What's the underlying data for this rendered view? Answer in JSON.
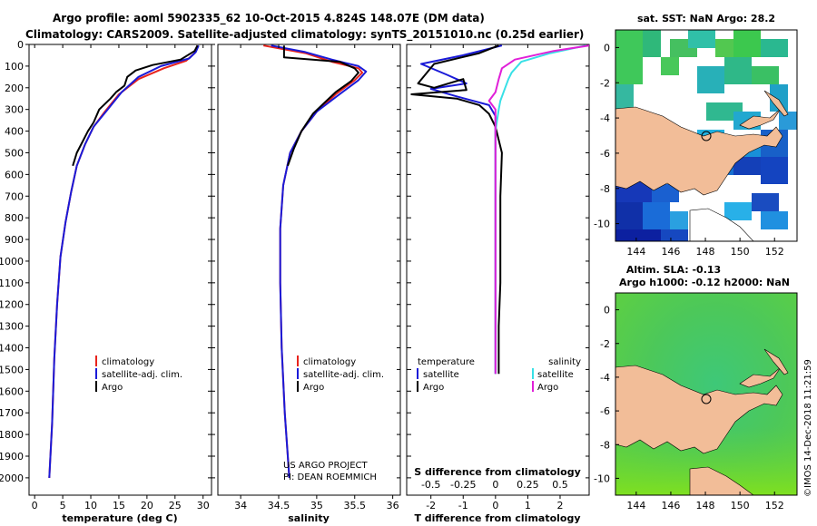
{
  "header": {
    "line1": "Argo profile: aoml 5902335_62 10-Oct-2015 4.824S 148.07E (DM data)",
    "line2": "Climatology: CARS2009. Satellite-adjusted climatology: synTS_20151010.nc (0.25d earlier)"
  },
  "colors": {
    "climatology": "#e8231c",
    "satellite": "#1a1ad8",
    "argo": "#000000",
    "sat_salinity": "#38e0e6",
    "argo_salinity": "#e020d8",
    "land": "#f2bd98"
  },
  "chart_data": [
    {
      "id": "temperature",
      "type": "line",
      "xlabel": "temperature (deg C)",
      "ylabel": "",
      "xlim": [
        -1,
        31.5
      ],
      "ylim": [
        2080,
        0
      ],
      "xticks": [
        "0",
        "5",
        "10",
        "15",
        "20",
        "25",
        "30"
      ],
      "yticks": [
        "0",
        "100",
        "200",
        "300",
        "400",
        "500",
        "600",
        "700",
        "800",
        "900",
        "1000",
        "1100",
        "1200",
        "1300",
        "1400",
        "1500",
        "1600",
        "1700",
        "1800",
        "1900",
        "2000"
      ],
      "legend": [
        "climatology",
        "satellite-adj. clim.",
        "Argo"
      ],
      "series": [
        {
          "name": "climatology",
          "color": "#e8231c",
          "points": [
            [
              29,
              5
            ],
            [
              28.5,
              40
            ],
            [
              27,
              75
            ],
            [
              23,
              110
            ],
            [
              18.5,
              160
            ],
            [
              15,
              230
            ],
            [
              12.5,
              310
            ],
            [
              10.5,
              380
            ],
            [
              9,
              460
            ],
            [
              7.5,
              560
            ],
            [
              6.5,
              680
            ],
            [
              5.5,
              820
            ],
            [
              4.6,
              980
            ],
            [
              4,
              1200
            ],
            [
              3.5,
              1450
            ],
            [
              3.1,
              1750
            ],
            [
              2.6,
              2000
            ]
          ]
        },
        {
          "name": "satellite-adj. clim.",
          "color": "#1a1ad8",
          "points": [
            [
              29.2,
              5
            ],
            [
              28.7,
              35
            ],
            [
              27.5,
              65
            ],
            [
              22.5,
              100
            ],
            [
              18.5,
              150
            ],
            [
              15.5,
              220
            ],
            [
              13,
              300
            ],
            [
              10.5,
              380
            ],
            [
              9,
              460
            ],
            [
              7.5,
              560
            ],
            [
              6.5,
              680
            ],
            [
              5.5,
              820
            ],
            [
              4.6,
              980
            ],
            [
              4,
              1200
            ],
            [
              3.5,
              1450
            ],
            [
              3.1,
              1750
            ],
            [
              2.6,
              2000
            ]
          ]
        },
        {
          "name": "Argo",
          "color": "#000000",
          "points": [
            [
              29,
              5
            ],
            [
              28.5,
              30
            ],
            [
              26,
              70
            ],
            [
              21,
              95
            ],
            [
              18,
              120
            ],
            [
              16.5,
              150
            ],
            [
              16,
              190
            ],
            [
              14.5,
              220
            ],
            [
              13.5,
              250
            ],
            [
              11.5,
              300
            ],
            [
              10.5,
              360
            ],
            [
              9.5,
              400
            ],
            [
              8.5,
              450
            ],
            [
              7.5,
              500
            ],
            [
              6.8,
              560
            ]
          ]
        }
      ]
    },
    {
      "id": "salinity",
      "type": "line",
      "xlabel": "salinity",
      "xlim": [
        33.7,
        36.1
      ],
      "ylim": [
        2080,
        0
      ],
      "xticks": [
        "34",
        "34.5",
        "35",
        "35.5",
        "36"
      ],
      "legend": [
        "climatology",
        "satellite-adj. clim.",
        "Argo"
      ],
      "series": [
        {
          "name": "climatology",
          "color": "#e8231c",
          "points": [
            [
              34.3,
              5
            ],
            [
              34.85,
              40
            ],
            [
              35.2,
              80
            ],
            [
              35.55,
              110
            ],
            [
              35.6,
              130
            ],
            [
              35.5,
              165
            ],
            [
              35.25,
              230
            ],
            [
              35.0,
              310
            ],
            [
              34.8,
              400
            ],
            [
              34.65,
              500
            ],
            [
              34.56,
              650
            ],
            [
              34.52,
              850
            ],
            [
              34.52,
              1100
            ],
            [
              34.54,
              1400
            ],
            [
              34.58,
              1700
            ],
            [
              34.64,
              2000
            ]
          ]
        },
        {
          "name": "satellite-adj. clim.",
          "color": "#1a1ad8",
          "points": [
            [
              34.4,
              5
            ],
            [
              34.85,
              35
            ],
            [
              35.2,
              70
            ],
            [
              35.55,
              100
            ],
            [
              35.65,
              125
            ],
            [
              35.55,
              165
            ],
            [
              35.3,
              230
            ],
            [
              35.0,
              310
            ],
            [
              34.8,
              400
            ],
            [
              34.65,
              500
            ],
            [
              34.56,
              650
            ],
            [
              34.52,
              850
            ],
            [
              34.52,
              1100
            ],
            [
              34.54,
              1400
            ],
            [
              34.58,
              1700
            ],
            [
              34.64,
              2000
            ]
          ]
        },
        {
          "name": "Argo",
          "color": "#000000",
          "points": [
            [
              34.57,
              5
            ],
            [
              34.57,
              60
            ],
            [
              35.3,
              80
            ],
            [
              35.5,
              110
            ],
            [
              35.55,
              130
            ],
            [
              35.45,
              170
            ],
            [
              35.25,
              220
            ],
            [
              35.1,
              270
            ],
            [
              34.95,
              320
            ],
            [
              34.8,
              400
            ],
            [
              34.7,
              480
            ],
            [
              34.62,
              560
            ]
          ]
        }
      ]
    },
    {
      "id": "difference",
      "type": "line",
      "xlabel": "T difference from climatology",
      "xlim": [
        -2.75,
        2.9
      ],
      "ylim": [
        2080,
        0
      ],
      "xticks": [
        "-2",
        "-1",
        "0",
        "1",
        "2"
      ],
      "xticks_top": [
        "-0.5",
        "-0.25",
        "0",
        "0.25",
        "0.5"
      ],
      "xlabel_top": "S difference from climatology",
      "legend_t": {
        "heading": "temperature",
        "items": [
          "satellite",
          "Argo"
        ]
      },
      "legend_s": {
        "heading": "salinity",
        "items": [
          "satellite",
          "Argo"
        ]
      },
      "series": [
        {
          "name": "T satellite",
          "color": "#1a1ad8",
          "points": [
            [
              0.2,
              5
            ],
            [
              -1,
              50
            ],
            [
              -2.3,
              90
            ],
            [
              -1.5,
              140
            ],
            [
              -0.9,
              180
            ],
            [
              -2.0,
              205
            ],
            [
              -1.2,
              240
            ],
            [
              -0.2,
              280
            ],
            [
              0,
              330
            ],
            [
              0,
              400
            ],
            [
              0,
              500
            ],
            [
              0,
              700
            ],
            [
              0,
              1000
            ],
            [
              0,
              1300
            ],
            [
              0,
              1520
            ]
          ]
        },
        {
          "name": "T Argo",
          "color": "#000000",
          "points": [
            [
              0.1,
              5
            ],
            [
              -0.5,
              40
            ],
            [
              -1.9,
              90
            ],
            [
              -2.4,
              180
            ],
            [
              -1.9,
              200
            ],
            [
              -1.0,
              160
            ],
            [
              -0.9,
              210
            ],
            [
              -2.6,
              230
            ],
            [
              -1.2,
              250
            ],
            [
              -0.5,
              280
            ],
            [
              -0.2,
              320
            ],
            [
              0,
              380
            ],
            [
              0.2,
              500
            ],
            [
              0.15,
              700
            ],
            [
              0.15,
              900
            ],
            [
              0.15,
              1100
            ],
            [
              0.1,
              1300
            ],
            [
              0.1,
              1520
            ]
          ]
        },
        {
          "name": "S satellite",
          "color": "#38e0e6",
          "points": [
            [
              2.8,
              5
            ],
            [
              1.7,
              40
            ],
            [
              0.8,
              80
            ],
            [
              0.5,
              130
            ],
            [
              0.4,
              160
            ],
            [
              0.3,
              200
            ],
            [
              0.15,
              260
            ],
            [
              0.1,
              300
            ],
            [
              0,
              400
            ],
            [
              0,
              600
            ],
            [
              0,
              800
            ],
            [
              0,
              1100
            ],
            [
              0,
              1400
            ],
            [
              0,
              1520
            ]
          ]
        },
        {
          "name": "S Argo",
          "color": "#e020d8",
          "points": [
            [
              2.9,
              5
            ],
            [
              1.8,
              30
            ],
            [
              0.6,
              70
            ],
            [
              0.2,
              110
            ],
            [
              0.1,
              160
            ],
            [
              0,
              220
            ],
            [
              -0.2,
              260
            ],
            [
              0,
              300
            ],
            [
              0,
              400
            ],
            [
              0,
              600
            ],
            [
              0,
              800
            ],
            [
              0,
              1100
            ],
            [
              0,
              1400
            ],
            [
              0,
              1520
            ]
          ]
        }
      ]
    },
    {
      "id": "sst-map",
      "type": "heatmap",
      "title": "sat. SST: NaN Argo: 28.2",
      "xticks": [
        "144",
        "146",
        "148",
        "150",
        "152"
      ],
      "yticks": [
        "0",
        "-2",
        "-4",
        "-6",
        "-8",
        "-10"
      ],
      "xlim": [
        142.8,
        153.3
      ],
      "ylim": [
        -11,
        1
      ]
    },
    {
      "id": "sla-map",
      "type": "heatmap",
      "title": "Altim. SLA: -0.13",
      "subtitle": "Argo h1000: -0.12 h2000: NaN",
      "xticks": [
        "144",
        "146",
        "148",
        "150",
        "152"
      ],
      "yticks": [
        "0",
        "-2",
        "-4",
        "-6",
        "-8",
        "-10"
      ],
      "xlim": [
        142.8,
        153.3
      ],
      "ylim": [
        -11,
        1
      ]
    }
  ],
  "credits": {
    "project": "US ARGO PROJECT",
    "pi": "PI: DEAN ROEMMICH",
    "imos": "©IMOS 14-Dec-2018 11:21:59"
  }
}
